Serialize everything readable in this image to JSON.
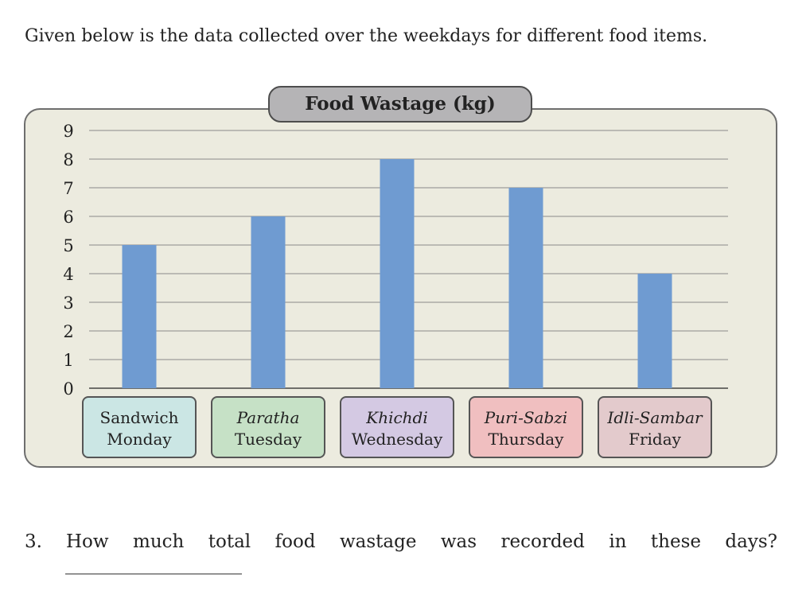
{
  "intro_text": "Given below is the data collected over the weekdays for different food items.",
  "chart_data": {
    "type": "bar",
    "title": "Food Wastage (kg)",
    "xlabel": "",
    "ylabel": "",
    "ylim": [
      0,
      9
    ],
    "y_ticks": [
      0,
      1,
      2,
      3,
      4,
      5,
      6,
      7,
      8,
      9
    ],
    "grid": true,
    "categories": [
      {
        "food": "Sandwich",
        "day": "Monday",
        "color": "#cbe6e4"
      },
      {
        "food": "Paratha",
        "day": "Tuesday",
        "color": "#c6e1c6"
      },
      {
        "food": "Khichdi",
        "day": "Wednesday",
        "color": "#d4c9e3"
      },
      {
        "food": "Puri-Sabzi",
        "day": "Thursday",
        "color": "#f0bfc0"
      },
      {
        "food": "Idli-Sambar",
        "day": "Friday",
        "color": "#e3cacc"
      }
    ],
    "values": [
      5,
      6,
      8,
      7,
      4
    ],
    "bar_color": "#6f9bd1"
  },
  "question": {
    "number": "3.",
    "words": [
      "How",
      "much",
      "total",
      "food",
      "wastage",
      "was",
      "recorded",
      "in",
      "these",
      "days?"
    ]
  }
}
